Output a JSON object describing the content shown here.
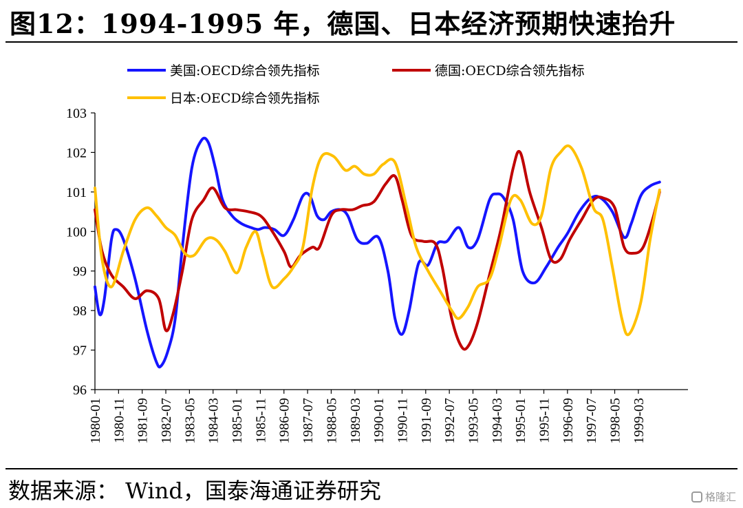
{
  "title": "图12：1994-1995 年，德国、日本经济预期快速抬升",
  "source": "数据来源：  Wind，国泰海通证券研究",
  "watermark": "格隆汇",
  "chart_data": {
    "type": "line",
    "title": "",
    "xlabel": "",
    "ylabel": "",
    "ylim": [
      96,
      103
    ],
    "yticks": [
      96,
      97,
      98,
      99,
      100,
      101,
      102,
      103
    ],
    "x_start": "1980-01",
    "x_end": "2000-12",
    "x_tick_labels": [
      "1980-01",
      "1980-11",
      "1981-09",
      "1982-07",
      "1983-05",
      "1984-03",
      "1985-01",
      "1985-11",
      "1986-09",
      "1987-07",
      "1988-05",
      "1989-03",
      "1990-01",
      "1990-11",
      "1991-09",
      "1992-07",
      "1993-05",
      "1994-03",
      "1995-01",
      "1995-11",
      "1996-09",
      "1997-07",
      "1998-05",
      "1999-03"
    ],
    "grid": false,
    "legend_position": "top",
    "series": [
      {
        "name": "美国:OECD综合领先指标",
        "color": "#1515ff",
        "points": [
          [
            "1980-01",
            98.6
          ],
          [
            "1980-03",
            97.9
          ],
          [
            "1980-05",
            98.3
          ],
          [
            "1980-08",
            99.8
          ],
          [
            "1980-10",
            100.05
          ],
          [
            "1981-01",
            99.8
          ],
          [
            "1981-06",
            98.8
          ],
          [
            "1981-11",
            97.5
          ],
          [
            "1982-03",
            96.7
          ],
          [
            "1982-05",
            96.6
          ],
          [
            "1982-08",
            97.0
          ],
          [
            "1982-11",
            97.8
          ],
          [
            "1983-02",
            99.6
          ],
          [
            "1983-06",
            101.6
          ],
          [
            "1983-10",
            102.3
          ],
          [
            "1984-01",
            102.25
          ],
          [
            "1984-04",
            101.6
          ],
          [
            "1984-07",
            100.8
          ],
          [
            "1984-11",
            100.4
          ],
          [
            "1985-03",
            100.2
          ],
          [
            "1985-07",
            100.1
          ],
          [
            "1985-10",
            100.05
          ],
          [
            "1986-01",
            100.1
          ],
          [
            "1986-05",
            100.05
          ],
          [
            "1986-09",
            99.9
          ],
          [
            "1987-01",
            100.3
          ],
          [
            "1987-05",
            100.9
          ],
          [
            "1987-08",
            100.9
          ],
          [
            "1987-11",
            100.4
          ],
          [
            "1988-02",
            100.3
          ],
          [
            "1988-05",
            100.5
          ],
          [
            "1988-09",
            100.55
          ],
          [
            "1988-12",
            100.4
          ],
          [
            "1989-04",
            99.8
          ],
          [
            "1989-08",
            99.7
          ],
          [
            "1990-01",
            99.85
          ],
          [
            "1990-05",
            99.0
          ],
          [
            "1990-08",
            97.8
          ],
          [
            "1990-11",
            97.4
          ],
          [
            "1991-02",
            98.0
          ],
          [
            "1991-06",
            99.2
          ],
          [
            "1991-10",
            99.15
          ],
          [
            "1992-02",
            99.7
          ],
          [
            "1992-06",
            99.75
          ],
          [
            "1992-11",
            100.1
          ],
          [
            "1993-03",
            99.6
          ],
          [
            "1993-07",
            99.8
          ],
          [
            "1993-12",
            100.8
          ],
          [
            "1994-03",
            100.95
          ],
          [
            "1994-06",
            100.85
          ],
          [
            "1994-10",
            100.3
          ],
          [
            "1995-02",
            99.0
          ],
          [
            "1995-07",
            98.7
          ],
          [
            "1995-12",
            99.1
          ],
          [
            "1996-05",
            99.6
          ],
          [
            "1996-09",
            99.95
          ],
          [
            "1997-02",
            100.5
          ],
          [
            "1997-07",
            100.85
          ],
          [
            "1997-11",
            100.85
          ],
          [
            "1998-04",
            100.5
          ],
          [
            "1998-09",
            99.85
          ],
          [
            "1998-12",
            100.2
          ],
          [
            "1999-04",
            100.9
          ],
          [
            "1999-08",
            101.15
          ],
          [
            "1999-12",
            101.25
          ]
        ]
      },
      {
        "name": "德国:OECD综合领先指标",
        "color": "#c00000",
        "points": [
          [
            "1980-01",
            100.55
          ],
          [
            "1980-04",
            99.5
          ],
          [
            "1980-08",
            98.9
          ],
          [
            "1981-01",
            98.6
          ],
          [
            "1981-06",
            98.3
          ],
          [
            "1981-11",
            98.5
          ],
          [
            "1982-04",
            98.3
          ],
          [
            "1982-07",
            97.5
          ],
          [
            "1982-10",
            97.9
          ],
          [
            "1983-02",
            99.0
          ],
          [
            "1983-06",
            100.3
          ],
          [
            "1983-11",
            100.8
          ],
          [
            "1984-03",
            101.1
          ],
          [
            "1984-08",
            100.6
          ],
          [
            "1985-01",
            100.55
          ],
          [
            "1985-06",
            100.5
          ],
          [
            "1985-11",
            100.4
          ],
          [
            "1986-03",
            100.1
          ],
          [
            "1986-09",
            99.5
          ],
          [
            "1986-12",
            99.1
          ],
          [
            "1987-04",
            99.4
          ],
          [
            "1987-09",
            99.6
          ],
          [
            "1987-12",
            99.6
          ],
          [
            "1988-05",
            100.4
          ],
          [
            "1988-09",
            100.55
          ],
          [
            "1989-02",
            100.55
          ],
          [
            "1989-06",
            100.65
          ],
          [
            "1989-11",
            100.75
          ],
          [
            "1990-04",
            101.2
          ],
          [
            "1990-08",
            101.4
          ],
          [
            "1990-11",
            100.8
          ],
          [
            "1991-03",
            99.9
          ],
          [
            "1991-08",
            99.75
          ],
          [
            "1992-01",
            99.7
          ],
          [
            "1992-04",
            99.1
          ],
          [
            "1992-08",
            97.8
          ],
          [
            "1992-12",
            97.1
          ],
          [
            "1993-03",
            97.1
          ],
          [
            "1993-07",
            97.7
          ],
          [
            "1993-12",
            98.9
          ],
          [
            "1994-05",
            100.1
          ],
          [
            "1994-10",
            101.6
          ],
          [
            "1995-01",
            102.0
          ],
          [
            "1995-05",
            101.0
          ],
          [
            "1995-10",
            100.1
          ],
          [
            "1996-02",
            99.3
          ],
          [
            "1996-06",
            99.3
          ],
          [
            "1996-10",
            99.8
          ],
          [
            "1997-03",
            100.3
          ],
          [
            "1997-08",
            100.8
          ],
          [
            "1997-12",
            100.85
          ],
          [
            "1998-05",
            100.6
          ],
          [
            "1998-09",
            99.6
          ],
          [
            "1999-01",
            99.45
          ],
          [
            "1999-05",
            99.6
          ],
          [
            "1999-09",
            100.3
          ],
          [
            "1999-12",
            101.0
          ]
        ]
      },
      {
        "name": "日本:OECD综合领先指标",
        "color": "#ffc000",
        "points": [
          [
            "1980-01",
            101.1
          ],
          [
            "1980-04",
            99.3
          ],
          [
            "1980-08",
            98.6
          ],
          [
            "1981-01",
            99.5
          ],
          [
            "1981-06",
            100.3
          ],
          [
            "1981-11",
            100.6
          ],
          [
            "1982-03",
            100.4
          ],
          [
            "1982-07",
            100.1
          ],
          [
            "1982-11",
            99.9
          ],
          [
            "1983-03",
            99.45
          ],
          [
            "1983-07",
            99.4
          ],
          [
            "1983-12",
            99.8
          ],
          [
            "1984-04",
            99.8
          ],
          [
            "1984-08",
            99.5
          ],
          [
            "1985-01",
            98.95
          ],
          [
            "1985-05",
            99.6
          ],
          [
            "1985-09",
            100.0
          ],
          [
            "1985-12",
            99.4
          ],
          [
            "1986-04",
            98.6
          ],
          [
            "1986-09",
            98.8
          ],
          [
            "1987-01",
            99.1
          ],
          [
            "1987-05",
            99.6
          ],
          [
            "1987-09",
            101.1
          ],
          [
            "1988-01",
            101.9
          ],
          [
            "1988-06",
            101.9
          ],
          [
            "1988-11",
            101.55
          ],
          [
            "1989-03",
            101.65
          ],
          [
            "1989-07",
            101.45
          ],
          [
            "1989-11",
            101.45
          ],
          [
            "1990-03",
            101.7
          ],
          [
            "1990-08",
            101.75
          ],
          [
            "1991-01",
            100.6
          ],
          [
            "1991-05",
            99.6
          ],
          [
            "1991-10",
            99.0
          ],
          [
            "1992-03",
            98.5
          ],
          [
            "1992-08",
            98.0
          ],
          [
            "1992-11",
            97.8
          ],
          [
            "1993-03",
            98.1
          ],
          [
            "1993-07",
            98.6
          ],
          [
            "1993-12",
            98.8
          ],
          [
            "1994-04",
            99.6
          ],
          [
            "1994-09",
            100.8
          ],
          [
            "1995-01",
            100.8
          ],
          [
            "1995-06",
            100.2
          ],
          [
            "1995-10",
            100.4
          ],
          [
            "1996-02",
            101.6
          ],
          [
            "1996-06",
            102.0
          ],
          [
            "1996-10",
            102.15
          ],
          [
            "1997-03",
            101.6
          ],
          [
            "1997-08",
            100.6
          ],
          [
            "1997-12",
            100.3
          ],
          [
            "1998-04",
            99.1
          ],
          [
            "1998-08",
            97.8
          ],
          [
            "1998-11",
            97.4
          ],
          [
            "1999-04",
            98.2
          ],
          [
            "1999-08",
            99.8
          ],
          [
            "1999-12",
            101.05
          ]
        ]
      }
    ]
  }
}
